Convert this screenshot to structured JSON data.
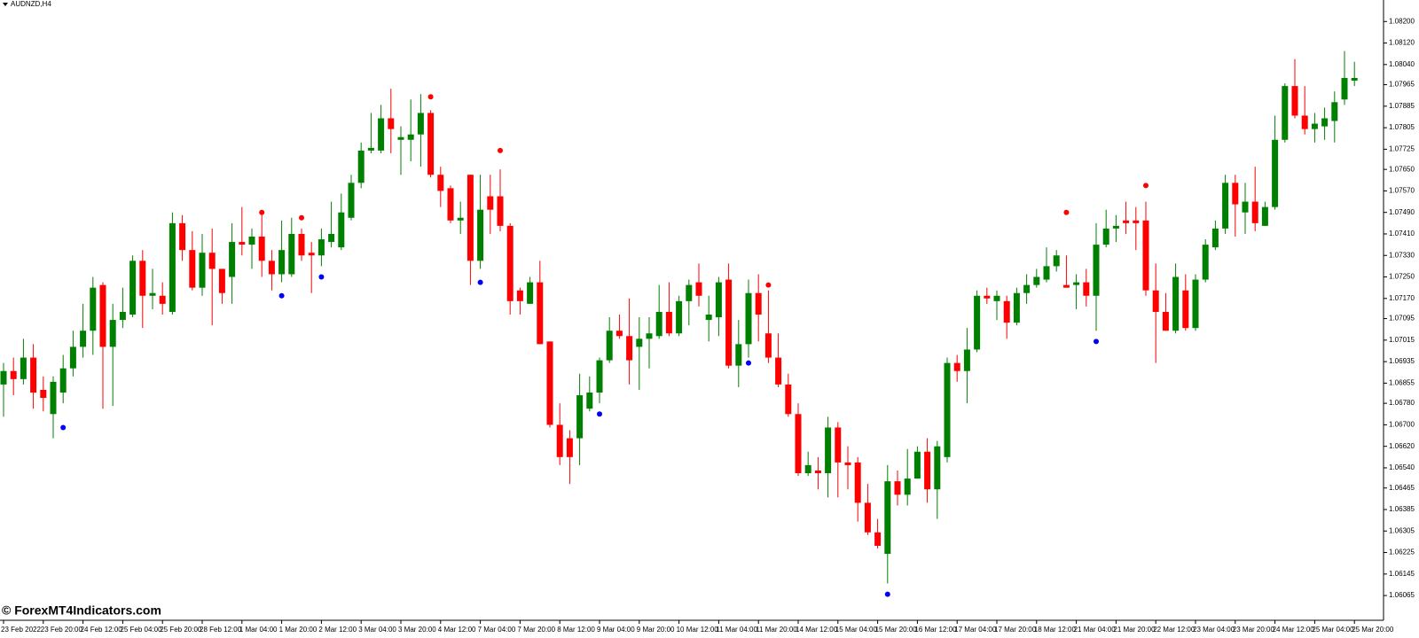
{
  "watermark": "© ForexMT4Indicators.com",
  "chart_data": {
    "type": "candlestick",
    "title": "AUDNZD,H4",
    "up_color": "#008000",
    "down_color": "#ff0000",
    "sell_color": "#ff0000",
    "buy_color": "#0000ff",
    "ylim": [
      1.05973,
      1.0828
    ],
    "yticks": [
      {
        "value": 1.082,
        "label": "1.08200"
      },
      {
        "value": 1.0812,
        "label": "1.08120"
      },
      {
        "value": 1.0804,
        "label": "1.08040"
      },
      {
        "value": 1.07965,
        "label": "1.07965"
      },
      {
        "value": 1.07885,
        "label": "1.07885"
      },
      {
        "value": 1.07805,
        "label": "1.07805"
      },
      {
        "value": 1.07725,
        "label": "1.07725"
      },
      {
        "value": 1.0765,
        "label": "1.07650"
      },
      {
        "value": 1.0757,
        "label": "1.07570"
      },
      {
        "value": 1.0749,
        "label": "1.07490"
      },
      {
        "value": 1.0741,
        "label": "1.07410"
      },
      {
        "value": 1.0733,
        "label": "1.07330"
      },
      {
        "value": 1.0725,
        "label": "1.07250"
      },
      {
        "value": 1.0717,
        "label": "1.07170"
      },
      {
        "value": 1.07095,
        "label": "1.07095"
      },
      {
        "value": 1.07015,
        "label": "1.07015"
      },
      {
        "value": 1.06935,
        "label": "1.06935"
      },
      {
        "value": 1.06855,
        "label": "1.06855"
      },
      {
        "value": 1.0678,
        "label": "1.06780"
      },
      {
        "value": 1.067,
        "label": "1.06700"
      },
      {
        "value": 1.0662,
        "label": "1.06620"
      },
      {
        "value": 1.0654,
        "label": "1.06540"
      },
      {
        "value": 1.06465,
        "label": "1.06465"
      },
      {
        "value": 1.06385,
        "label": "1.06385"
      },
      {
        "value": 1.06305,
        "label": "1.06305"
      },
      {
        "value": 1.06225,
        "label": "1.06225"
      },
      {
        "value": 1.06145,
        "label": "1.06145"
      },
      {
        "value": 1.06065,
        "label": "1.06065"
      }
    ],
    "categories": [
      "23 Feb 2022",
      null,
      null,
      null,
      "23 Feb 20:00",
      null,
      null,
      null,
      "24 Feb 12:00",
      null,
      null,
      null,
      "25 Feb 04:00",
      null,
      null,
      null,
      "25 Feb 20:00",
      null,
      null,
      null,
      "28 Feb 12:00",
      null,
      null,
      null,
      "1 Mar 04:00",
      null,
      null,
      null,
      "1 Mar 20:00",
      null,
      null,
      null,
      "2 Mar 12:00",
      null,
      null,
      null,
      "3 Mar 04:00",
      null,
      null,
      null,
      "3 Mar 20:00",
      null,
      null,
      null,
      "4 Mar 12:00",
      null,
      null,
      null,
      "7 Mar 04:00",
      null,
      null,
      null,
      "7 Mar 20:00",
      null,
      null,
      null,
      "8 Mar 12:00",
      null,
      null,
      null,
      "9 Mar 04:00",
      null,
      null,
      null,
      "9 Mar 20:00",
      null,
      null,
      null,
      "10 Mar 12:00",
      null,
      null,
      null,
      "11 Mar 04:00",
      null,
      null,
      null,
      "11 Mar 20:00",
      null,
      null,
      null,
      "14 Mar 12:00",
      null,
      null,
      null,
      "15 Mar 04:00",
      null,
      null,
      null,
      "15 Mar 20:00",
      null,
      null,
      null,
      "16 Mar 12:00",
      null,
      null,
      null,
      "17 Mar 04:00",
      null,
      null,
      null,
      "17 Mar 20:00",
      null,
      null,
      null,
      "18 Mar 12:00",
      null,
      null,
      null,
      "21 Mar 04:00",
      null,
      null,
      null,
      "21 Mar 20:00",
      null,
      null,
      null,
      "22 Mar 12:00",
      null,
      null,
      null,
      "23 Mar 04:00",
      null,
      null,
      null,
      "23 Mar 20:00",
      null,
      null,
      null,
      "24 Mar 12:00",
      null,
      null,
      null,
      "25 Mar 04:00",
      null,
      null,
      null,
      "25 Mar 20:00"
    ],
    "open": [
      1.0685,
      1.069,
      1.0687,
      1.0695,
      1.0683,
      1.0674,
      1.0682,
      1.0691,
      1.0699,
      1.0705,
      1.0722,
      1.0699,
      1.0709,
      1.0711,
      1.0731,
      1.0718,
      1.0718,
      1.0712,
      1.0745,
      1.0735,
      1.0721,
      1.0734,
      1.0728,
      1.0725,
      1.0738,
      1.0737,
      1.074,
      1.0731,
      1.0726,
      1.0726,
      1.0741,
      1.0734,
      1.0733,
      1.0738,
      1.0736,
      1.0747,
      1.076,
      1.0772,
      1.0772,
      1.0784,
      1.0776,
      1.0776,
      1.0778,
      1.0786,
      1.0763,
      1.0758,
      1.0746,
      1.0763,
      1.0731,
      1.0755,
      1.0755,
      1.0744,
      1.072,
      1.0715,
      1.0723,
      1.0701,
      1.067,
      1.0665,
      1.0665,
      1.0676,
      1.0682,
      1.0694,
      1.0705,
      1.0703,
      1.0699,
      1.0702,
      1.0703,
      1.0712,
      1.0704,
      1.0716,
      1.0723,
      1.0709,
      1.071,
      1.0724,
      1.0692,
      1.07,
      1.0719,
      1.0704,
      1.0695,
      1.0685,
      1.0674,
      1.0652,
      1.0653,
      1.0652,
      1.0669,
      1.0656,
      1.0656,
      1.0641,
      1.063,
      1.0622,
      1.0649,
      1.0644,
      1.065,
      1.066,
      1.0646,
      1.0658,
      1.0693,
      1.069,
      1.0698,
      1.0718,
      1.0716,
      1.0716,
      1.0708,
      1.0719,
      1.0722,
      1.0724,
      1.0729,
      1.0722,
      1.0722,
      1.0723,
      1.0718,
      1.0737,
      1.0743,
      1.0746,
      1.0746,
      1.0746,
      1.072,
      1.0712,
      1.0705,
      1.072,
      1.0706,
      1.0724,
      1.0736,
      1.0743,
      1.076,
      1.0749,
      1.0753,
      1.0744,
      1.0751,
      1.0776,
      1.0796,
      1.0785,
      1.078,
      1.0781,
      1.0783,
      1.0791,
      1.0798
    ],
    "high": [
      1.0693,
      1.0695,
      1.0702,
      1.07,
      1.0688,
      1.0688,
      1.0696,
      1.0705,
      1.0715,
      1.0725,
      1.0723,
      1.0715,
      1.0721,
      1.0733,
      1.0735,
      1.0728,
      1.0723,
      1.0749,
      1.0748,
      1.0742,
      1.0741,
      1.0743,
      1.0728,
      1.0745,
      1.0751,
      1.0743,
      1.0748,
      1.0735,
      1.0746,
      1.0747,
      1.0743,
      1.0738,
      1.0743,
      1.0753,
      1.0756,
      1.0763,
      1.0775,
      1.0786,
      1.0789,
      1.0795,
      1.0781,
      1.0791,
      1.0793,
      1.0787,
      1.0766,
      1.0759,
      1.0753,
      1.0763,
      1.0763,
      1.0763,
      1.0765,
      1.0745,
      1.0721,
      1.0725,
      1.0731,
      1.0701,
      1.0678,
      1.0668,
      1.0689,
      1.0688,
      1.0695,
      1.071,
      1.0711,
      1.0717,
      1.071,
      1.071,
      1.0722,
      1.0723,
      1.0718,
      1.0724,
      1.073,
      1.0718,
      1.0725,
      1.073,
      1.0709,
      1.0724,
      1.0726,
      1.072,
      1.0704,
      1.0689,
      1.0678,
      1.066,
      1.0658,
      1.0673,
      1.0671,
      1.0662,
      1.0658,
      1.0648,
      1.0635,
      1.0655,
      1.0653,
      1.0661,
      1.0662,
      1.0665,
      1.0664,
      1.0695,
      1.0696,
      1.0706,
      1.072,
      1.0721,
      1.072,
      1.0718,
      1.0721,
      1.0726,
      1.0728,
      1.0736,
      1.0735,
      1.0733,
      1.0726,
      1.0728,
      1.0745,
      1.075,
      1.0748,
      1.0753,
      1.0751,
      1.0753,
      1.073,
      1.0719,
      1.073,
      1.0726,
      1.0726,
      1.0739,
      1.0746,
      1.0763,
      1.0763,
      1.076,
      1.0766,
      1.0753,
      1.0785,
      1.0797,
      1.0806,
      1.0796,
      1.0786,
      1.0788,
      1.0794,
      1.0809,
      1.0805
    ],
    "low": [
      1.0673,
      1.0681,
      1.0685,
      1.0676,
      1.0675,
      1.0665,
      1.0678,
      1.0688,
      1.0695,
      1.0696,
      1.0676,
      1.0677,
      1.0706,
      1.071,
      1.0706,
      1.0713,
      1.0711,
      1.0711,
      1.0731,
      1.072,
      1.0718,
      1.0707,
      1.0715,
      1.0715,
      1.0733,
      1.0728,
      1.0725,
      1.072,
      1.0723,
      1.0725,
      1.0731,
      1.0719,
      1.0729,
      1.0736,
      1.0735,
      1.0746,
      1.0758,
      1.0771,
      1.0771,
      1.0771,
      1.0763,
      1.0768,
      1.0766,
      1.0762,
      1.0751,
      1.0745,
      1.0741,
      1.0722,
      1.0728,
      1.0741,
      1.0742,
      1.0711,
      1.0711,
      1.0715,
      1.07,
      1.0669,
      1.0655,
      1.0648,
      1.0655,
      1.0675,
      1.0678,
      1.0693,
      1.0702,
      1.0685,
      1.0683,
      1.0691,
      1.0702,
      1.0703,
      1.0703,
      1.0707,
      1.0714,
      1.0701,
      1.0703,
      1.0691,
      1.0684,
      1.0695,
      1.0701,
      1.0693,
      1.0684,
      1.0673,
      1.0651,
      1.0651,
      1.0646,
      1.0643,
      1.0643,
      1.0646,
      1.0634,
      1.0629,
      1.0624,
      1.0611,
      1.064,
      1.064,
      1.065,
      1.0641,
      1.0635,
      1.0656,
      1.0686,
      1.0678,
      1.0697,
      1.0715,
      1.0709,
      1.0702,
      1.0707,
      1.0715,
      1.0721,
      1.0723,
      1.0727,
      1.0721,
      1.0713,
      1.0714,
      1.0705,
      1.0736,
      1.0738,
      1.0741,
      1.0735,
      1.0718,
      1.0693,
      1.0705,
      1.0704,
      1.0705,
      1.0705,
      1.0723,
      1.0735,
      1.0741,
      1.074,
      1.0741,
      1.0742,
      1.0744,
      1.075,
      1.0775,
      1.0784,
      1.0778,
      1.0775,
      1.0776,
      1.0775,
      1.0789,
      1.0796
    ],
    "close": [
      1.069,
      1.0687,
      1.0695,
      1.0682,
      1.068,
      1.0686,
      1.0691,
      1.0699,
      1.0705,
      1.0721,
      1.0699,
      1.0709,
      1.0712,
      1.0731,
      1.0718,
      1.0719,
      1.0715,
      1.0745,
      1.0735,
      1.0721,
      1.0734,
      1.0728,
      1.0719,
      1.0738,
      1.0737,
      1.074,
      1.0731,
      1.0726,
      1.0735,
      1.0741,
      1.0733,
      1.0733,
      1.0739,
      1.0741,
      1.0749,
      1.076,
      1.0772,
      1.0773,
      1.0784,
      1.078,
      1.0777,
      1.0778,
      1.0786,
      1.0763,
      1.0757,
      1.0746,
      1.0747,
      1.0731,
      1.075,
      1.075,
      1.0744,
      1.0716,
      1.0716,
      1.0723,
      1.07,
      1.067,
      1.0658,
      1.0658,
      1.0681,
      1.0682,
      1.0694,
      1.0705,
      1.0703,
      1.0694,
      1.0702,
      1.0704,
      1.0712,
      1.0704,
      1.0716,
      1.0722,
      1.0718,
      1.0711,
      1.0723,
      1.0692,
      1.07,
      1.0719,
      1.0711,
      1.0695,
      1.0685,
      1.0674,
      1.0652,
      1.0655,
      1.0652,
      1.0669,
      1.0656,
      1.0655,
      1.0641,
      1.063,
      1.0625,
      1.0649,
      1.0644,
      1.065,
      1.066,
      1.0646,
      1.0662,
      1.0693,
      1.069,
      1.0698,
      1.0718,
      1.0717,
      1.0718,
      1.0708,
      1.0719,
      1.0722,
      1.0725,
      1.0729,
      1.0733,
      1.0721,
      1.0723,
      1.0718,
      1.0737,
      1.0743,
      1.0744,
      1.0745,
      1.0745,
      1.072,
      1.0712,
      1.0705,
      1.0725,
      1.0706,
      1.0724,
      1.0737,
      1.0743,
      1.076,
      1.0752,
      1.0753,
      1.0745,
      1.0751,
      1.0776,
      1.0796,
      1.0785,
      1.078,
      1.0782,
      1.0784,
      1.079,
      1.0799,
      1.0799
    ],
    "sell_signals": [
      null,
      null,
      null,
      null,
      null,
      null,
      null,
      null,
      null,
      null,
      null,
      null,
      null,
      null,
      null,
      null,
      null,
      null,
      null,
      null,
      null,
      null,
      null,
      null,
      null,
      null,
      1.0749,
      null,
      null,
      null,
      1.0747,
      null,
      null,
      null,
      null,
      null,
      null,
      null,
      null,
      null,
      null,
      null,
      null,
      1.0792,
      null,
      null,
      null,
      null,
      null,
      null,
      1.0772,
      null,
      null,
      null,
      null,
      null,
      null,
      null,
      null,
      null,
      null,
      null,
      null,
      null,
      null,
      null,
      null,
      null,
      null,
      null,
      null,
      null,
      null,
      null,
      null,
      null,
      null,
      1.0722,
      null,
      null,
      null,
      null,
      null,
      null,
      null,
      null,
      null,
      null,
      null,
      null,
      null,
      null,
      null,
      null,
      null,
      null,
      null,
      null,
      null,
      null,
      null,
      null,
      null,
      null,
      null,
      null,
      null,
      1.0749,
      null,
      null,
      null,
      null,
      null,
      null,
      null,
      1.0759,
      null,
      null,
      null,
      null,
      null,
      null,
      null,
      null,
      null,
      null,
      null,
      null,
      null,
      null,
      null,
      null,
      null,
      null,
      null,
      null,
      null
    ],
    "buy_signals": [
      null,
      null,
      null,
      null,
      null,
      null,
      1.0669,
      null,
      null,
      null,
      null,
      null,
      null,
      null,
      null,
      null,
      null,
      null,
      null,
      null,
      null,
      null,
      null,
      null,
      null,
      null,
      null,
      null,
      1.0718,
      null,
      null,
      null,
      1.0725,
      null,
      null,
      null,
      null,
      null,
      null,
      null,
      null,
      null,
      null,
      null,
      null,
      null,
      null,
      null,
      1.0723,
      null,
      null,
      null,
      null,
      null,
      null,
      null,
      null,
      null,
      null,
      null,
      1.0674,
      null,
      null,
      null,
      null,
      null,
      null,
      null,
      null,
      null,
      null,
      null,
      null,
      null,
      null,
      1.0693,
      null,
      null,
      null,
      null,
      null,
      null,
      null,
      null,
      null,
      null,
      null,
      null,
      null,
      1.0607,
      null,
      null,
      null,
      null,
      null,
      null,
      null,
      null,
      null,
      null,
      null,
      null,
      null,
      null,
      null,
      null,
      null,
      null,
      null,
      null,
      1.0701,
      null,
      null,
      null,
      null,
      null,
      null,
      null,
      null,
      null,
      null,
      null,
      null,
      null,
      null,
      null,
      null,
      null,
      null,
      null,
      null,
      null,
      null,
      null,
      null,
      null,
      null
    ]
  }
}
